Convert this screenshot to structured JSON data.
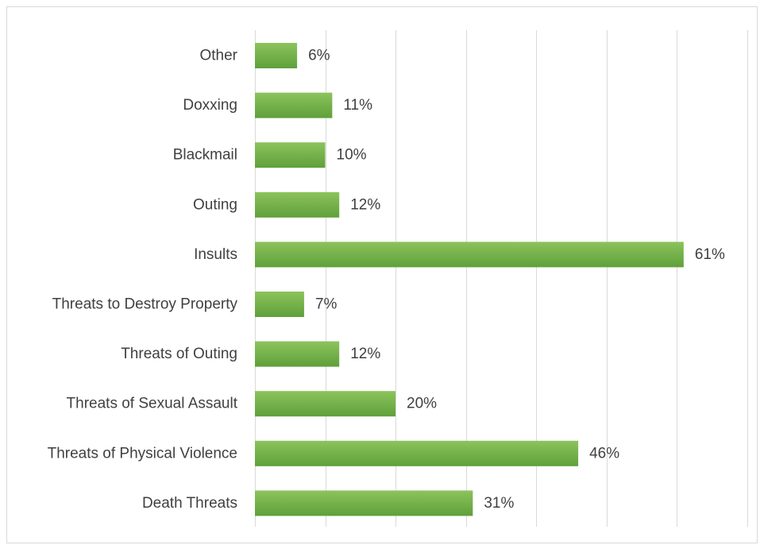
{
  "chart_data": {
    "type": "bar",
    "orientation": "horizontal",
    "categories": [
      "Other",
      "Doxxing",
      "Blackmail",
      "Outing",
      "Insults",
      "Threats to Destroy Property",
      "Threats of Outing",
      "Threats of Sexual Assault",
      "Threats of Physical Violence",
      "Death Threats"
    ],
    "values": [
      6,
      11,
      10,
      12,
      61,
      7,
      12,
      20,
      46,
      31
    ],
    "value_labels": [
      "6%",
      "11%",
      "10%",
      "12%",
      "61%",
      "7%",
      "12%",
      "20%",
      "46%",
      "31%"
    ],
    "unit": "%",
    "xlim": [
      0,
      70
    ],
    "x_gridline_step": 10,
    "grid": true,
    "legend": "none",
    "bar_color": "#70ad47",
    "bar_gradient_top": "#8cc35c",
    "bar_gradient_bottom": "#5fa03a"
  }
}
